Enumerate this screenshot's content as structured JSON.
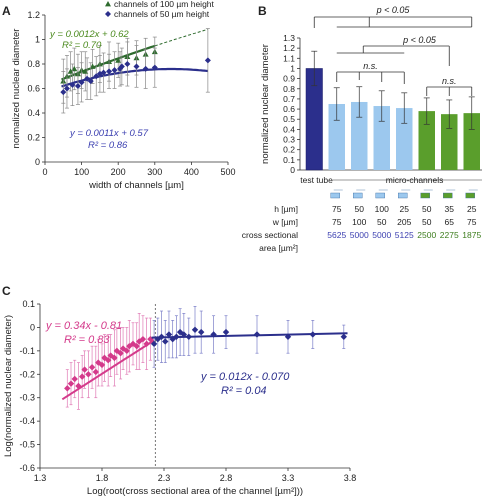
{
  "panels": {
    "a": "A",
    "b": "B",
    "c": "C"
  },
  "chart_data": [
    {
      "panel": "A",
      "type": "scatter",
      "xlabel": "width of channels [µm]",
      "ylabel": "normalized nuclear diameter",
      "xlim": [
        0,
        500
      ],
      "ylim": [
        0.0,
        1.2
      ],
      "xticks": [
        "0",
        "100",
        "200",
        "300",
        "400",
        "500"
      ],
      "yticks": [
        "0",
        "0.2",
        "0.4",
        "0.6",
        "0.8",
        "1",
        "1.2"
      ],
      "legend": [
        "channels of 100 µm height",
        "channels of 50 µm height"
      ],
      "legend_position": "top",
      "series": [
        {
          "name": "channels of 100 µm height",
          "color": "#2e6b2e",
          "marker": "triangle",
          "points": [
            [
              50,
              0.66
            ],
            [
              60,
              0.7
            ],
            [
              70,
              0.74
            ],
            [
              80,
              0.76
            ],
            [
              90,
              0.72
            ],
            [
              100,
              0.75
            ],
            [
              110,
              0.74
            ],
            [
              130,
              0.78
            ],
            [
              150,
              0.8
            ],
            [
              175,
              0.82
            ],
            [
              200,
              0.83
            ],
            [
              225,
              0.86
            ],
            [
              250,
              0.85
            ],
            [
              275,
              0.88
            ],
            [
              300,
              0.9
            ]
          ],
          "errors": [
            0.18,
            0.17,
            0.16,
            0.17,
            0.16,
            0.15,
            0.16,
            0.14,
            0.15,
            0.16,
            0.14,
            0.15,
            0.14,
            0.13,
            0.12
          ],
          "fit": {
            "equation": "y = 0.0012x + 0.62",
            "r2": "R² = 0.70",
            "label_color": "#4b8a1e",
            "range": [
              45,
              445
            ]
          }
        },
        {
          "name": "channels of 50 µm height",
          "color": "#2b2f8c",
          "marker": "diamond",
          "points": [
            [
              50,
              0.57
            ],
            [
              60,
              0.6
            ],
            [
              75,
              0.63
            ],
            [
              90,
              0.62
            ],
            [
              100,
              0.65
            ],
            [
              115,
              0.68
            ],
            [
              125,
              0.66
            ],
            [
              140,
              0.7
            ],
            [
              150,
              0.72
            ],
            [
              160,
              0.73
            ],
            [
              175,
              0.74
            ],
            [
              190,
              0.75
            ],
            [
              205,
              0.76
            ],
            [
              210,
              0.78
            ],
            [
              225,
              0.8
            ],
            [
              250,
              0.78
            ],
            [
              275,
              0.76
            ],
            [
              300,
              0.77
            ],
            [
              445,
              0.83
            ]
          ],
          "errors": [
            0.17,
            0.16,
            0.17,
            0.15,
            0.16,
            0.17,
            0.15,
            0.16,
            0.15,
            0.16,
            0.14,
            0.15,
            0.14,
            0.15,
            0.18,
            0.17,
            0.16,
            0.16,
            0.26
          ],
          "fit": {
            "equation": "y = 0.0011x + 0.57",
            "r2": "R² = 0.86",
            "label_color": "#3b3fb0",
            "range": [
              45,
              445
            ]
          }
        }
      ]
    },
    {
      "panel": "B",
      "type": "bar",
      "ylabel": "normalized nuclear diameter",
      "ylim": [
        0,
        1.3
      ],
      "yticks": [
        "0",
        "0.1",
        "0.2",
        "0.3",
        "0.4",
        "0.5",
        "0.6",
        "0.7",
        "0.8",
        "0.9",
        "1",
        "1.1",
        "1.2",
        "1.3"
      ],
      "group_labels": {
        "test_tube": "test tube",
        "micro": "micro-channels"
      },
      "values": [
        1.0,
        0.65,
        0.67,
        0.63,
        0.61,
        0.58,
        0.55,
        0.56
      ],
      "errors": [
        0.17,
        0.16,
        0.15,
        0.15,
        0.15,
        0.13,
        0.14,
        0.16
      ],
      "colors": [
        "#2b2f8c",
        "#9cc8ee",
        "#9cc8ee",
        "#9cc8ee",
        "#9cc8ee",
        "#5a9e2c",
        "#5a9e2c",
        "#5a9e2c"
      ],
      "significance": [
        "p < 0.05",
        "p < 0.05",
        "n.s.",
        "n.s.",
        "n.s."
      ],
      "table": {
        "row_labels": [
          "h [µm]",
          "w [µm]",
          "cross sectional",
          "area [µm²]"
        ],
        "h": [
          "75",
          "50",
          "100",
          "25",
          "50",
          "35",
          "25"
        ],
        "w": [
          "75",
          "100",
          "50",
          "205",
          "50",
          "65",
          "75"
        ],
        "area": [
          "5625",
          "5000",
          "5000",
          "5125",
          "2500",
          "2275",
          "1875"
        ]
      }
    },
    {
      "panel": "C",
      "type": "scatter",
      "xlabel": "Log(root(cross sectional area of the channel [µm²]))",
      "ylabel": "Log(normalized nuclear diameter)",
      "xlim": [
        1.3,
        3.8
      ],
      "ylim": [
        -0.6,
        0.1
      ],
      "xticks": [
        "1.3",
        "1.8",
        "2.3",
        "2.8",
        "3.3",
        "3.8"
      ],
      "yticks": [
        "-0.6",
        "-0.5",
        "-0.4",
        "-0.3",
        "-0.2",
        "-0.1",
        "0",
        "0.1"
      ],
      "divider_x": 2.23,
      "series": [
        {
          "name": "",
          "color": "#d43a8b",
          "points": [
            [
              1.52,
              -0.26
            ],
            [
              1.55,
              -0.24
            ],
            [
              1.58,
              -0.22
            ],
            [
              1.61,
              -0.25
            ],
            [
              1.64,
              -0.21
            ],
            [
              1.66,
              -0.18
            ],
            [
              1.69,
              -0.2
            ],
            [
              1.72,
              -0.17
            ],
            [
              1.75,
              -0.19
            ],
            [
              1.77,
              -0.15
            ],
            [
              1.8,
              -0.16
            ],
            [
              1.82,
              -0.13
            ],
            [
              1.85,
              -0.14
            ],
            [
              1.87,
              -0.12
            ],
            [
              1.9,
              -0.13
            ],
            [
              1.92,
              -0.1
            ],
            [
              1.95,
              -0.11
            ],
            [
              1.97,
              -0.09
            ],
            [
              2.0,
              -0.1
            ],
            [
              2.02,
              -0.08
            ],
            [
              2.05,
              -0.07
            ],
            [
              2.08,
              -0.08
            ],
            [
              2.1,
              -0.06
            ],
            [
              2.13,
              -0.05
            ],
            [
              2.16,
              -0.07
            ],
            [
              2.19,
              -0.05
            ]
          ],
          "errors": [
            0.08,
            0.09,
            0.08,
            0.1,
            0.09,
            0.08,
            0.1,
            0.09,
            0.11,
            0.1,
            0.09,
            0.1,
            0.11,
            0.09,
            0.12,
            0.1,
            0.11,
            0.09,
            0.1,
            0.11,
            0.09,
            0.1,
            0.12,
            0.1,
            0.11,
            0.09
          ],
          "fit": {
            "equation": "y = 0.34x - 0.81",
            "r2": "R² = 0.83",
            "from": 1.48,
            "to": 2.22
          }
        },
        {
          "name": "",
          "color": "#2b2f8c",
          "points": [
            [
              2.22,
              -0.07
            ],
            [
              2.25,
              -0.05
            ],
            [
              2.28,
              -0.04
            ],
            [
              2.31,
              -0.06
            ],
            [
              2.34,
              -0.03
            ],
            [
              2.37,
              -0.05
            ],
            [
              2.4,
              -0.04
            ],
            [
              2.43,
              -0.02
            ],
            [
              2.46,
              -0.03
            ],
            [
              2.5,
              -0.04
            ],
            [
              2.55,
              -0.01
            ],
            [
              2.6,
              -0.02
            ],
            [
              2.7,
              -0.03
            ],
            [
              2.8,
              -0.02
            ],
            [
              3.05,
              -0.03
            ],
            [
              3.3,
              -0.04
            ],
            [
              3.5,
              -0.03
            ],
            [
              3.75,
              -0.04
            ]
          ],
          "errors": [
            0.1,
            0.09,
            0.11,
            0.09,
            0.1,
            0.08,
            0.09,
            0.1,
            0.09,
            0.08,
            0.1,
            0.09,
            0.08,
            0.07,
            0.08,
            0.07,
            0.06,
            0.05
          ],
          "fit": {
            "equation": "y = 0.012x - 0.070",
            "r2": "R² = 0.04",
            "from": 2.2,
            "to": 3.78
          }
        }
      ]
    }
  ]
}
